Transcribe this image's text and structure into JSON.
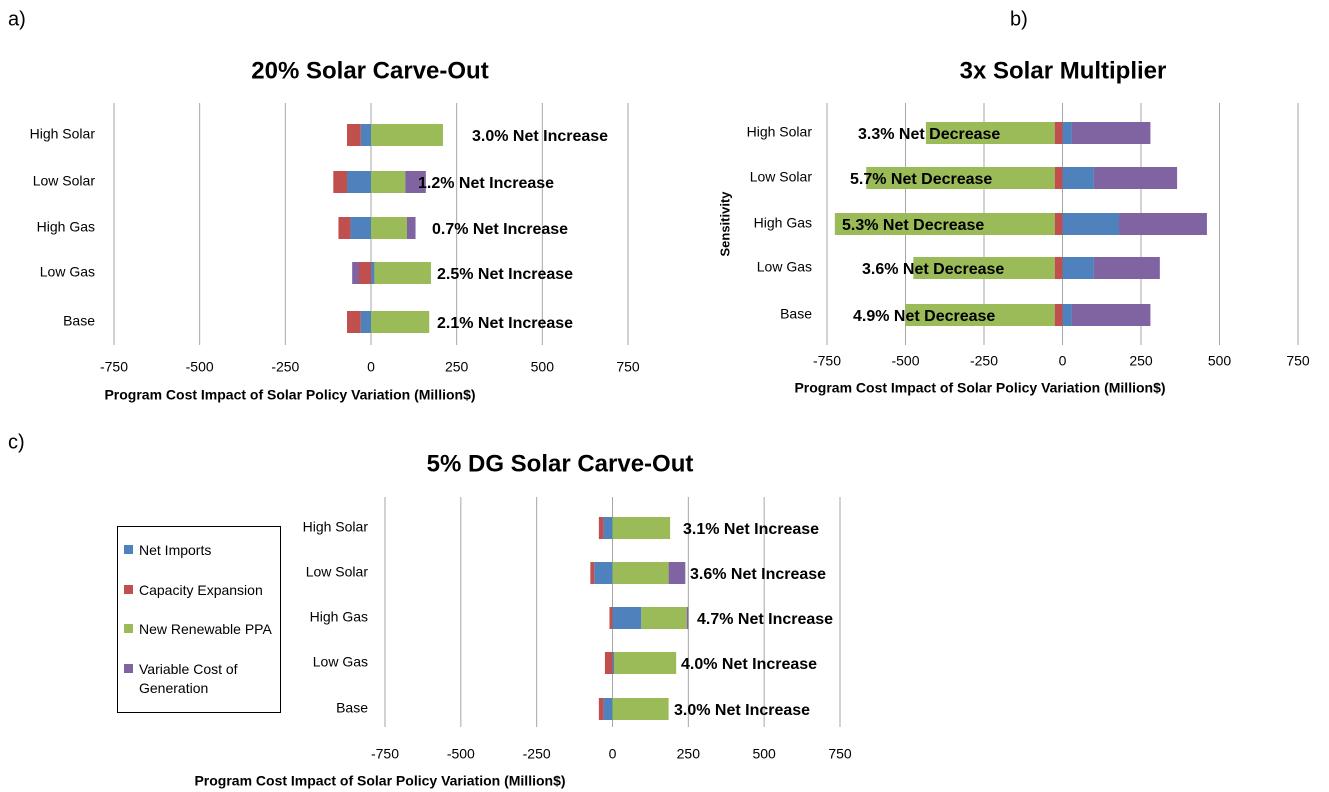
{
  "chart_data": [
    {
      "type": "bar",
      "panel": "a)",
      "title": "20% Solar Carve-Out",
      "x_label": "Program Cost Impact of Solar Policy Variation  (Million$)",
      "categories": [
        "High Solar",
        "Low Solar",
        "High Gas",
        "Low Gas",
        "Base"
      ],
      "series": [
        {
          "color": "#4f81bd",
          "values": [
            -30,
            -70,
            -60,
            10,
            -30
          ]
        },
        {
          "color": "#c0504d",
          "values": [
            -40,
            -40,
            -35,
            -35,
            -40
          ]
        },
        {
          "color": "#9bbb59",
          "values": [
            210,
            100,
            105,
            165,
            170
          ]
        },
        {
          "color": "#8064a2",
          "values": [
            0,
            60,
            25,
            -20,
            0
          ]
        }
      ],
      "annotations": [
        "3.0% Net Increase",
        "1.2% Net Increase",
        "0.7% Net Increase",
        "2.5% Net Increase",
        "2.1% Net Increase"
      ],
      "xlim": [
        -750,
        750
      ],
      "xticks": [
        -750,
        -500,
        -250,
        0,
        250,
        500,
        750
      ],
      "grid": true
    },
    {
      "type": "bar",
      "panel": "b)",
      "title": "3x Solar Multiplier",
      "x_label": "Program Cost Impact of Solar Policy Variation  (Million$)",
      "y_label": "Sensitivity",
      "categories": [
        "High Solar",
        "Low Solar",
        "High Gas",
        "Low Gas",
        "Base"
      ],
      "series": [
        {
          "color": "#4f81bd",
          "values": [
            30,
            100,
            180,
            100,
            30
          ]
        },
        {
          "color": "#c0504d",
          "values": [
            -25,
            -25,
            -25,
            -25,
            -25
          ]
        },
        {
          "color": "#9bbb59",
          "values": [
            -410,
            -600,
            -700,
            -450,
            -475
          ]
        },
        {
          "color": "#8064a2",
          "values": [
            250,
            265,
            280,
            210,
            250
          ]
        }
      ],
      "annotations": [
        "3.3% Net Decrease",
        "5.7% Net Decrease",
        "5.3% Net Decrease",
        "3.6% Net Decrease",
        "4.9% Net Decrease"
      ],
      "xlim": [
        -750,
        750
      ],
      "xticks": [
        -750,
        -500,
        -250,
        0,
        250,
        500,
        750
      ],
      "grid": true
    },
    {
      "type": "bar",
      "panel": "c)",
      "title": "5% DG Solar Carve-Out",
      "x_label": "Program Cost Impact of Solar Policy Variation  (Million$)",
      "categories": [
        "High Solar",
        "Low Solar",
        "High Gas",
        "Low Gas",
        "Base"
      ],
      "series": [
        {
          "name": "Net Imports",
          "color": "#4f81bd",
          "values": [
            -30,
            -60,
            95,
            5,
            -30
          ]
        },
        {
          "name": "Capacity Expansion",
          "color": "#c0504d",
          "values": [
            -15,
            -13,
            -10,
            -25,
            -15
          ]
        },
        {
          "name": "New Renewable PPA",
          "color": "#9bbb59",
          "values": [
            190,
            185,
            150,
            205,
            185
          ]
        },
        {
          "name": "Variable Cost of Generation",
          "color": "#8064a2",
          "values": [
            0,
            55,
            5,
            0,
            0
          ]
        }
      ],
      "annotations": [
        "3.1% Net Increase",
        "3.6% Net Increase",
        "4.7% Net Increase",
        "4.0% Net Increase",
        "3.0% Net Increase"
      ],
      "xlim": [
        -750,
        750
      ],
      "xticks": [
        -750,
        -500,
        -250,
        0,
        250,
        500,
        750
      ],
      "grid": true,
      "legend": "left"
    }
  ]
}
